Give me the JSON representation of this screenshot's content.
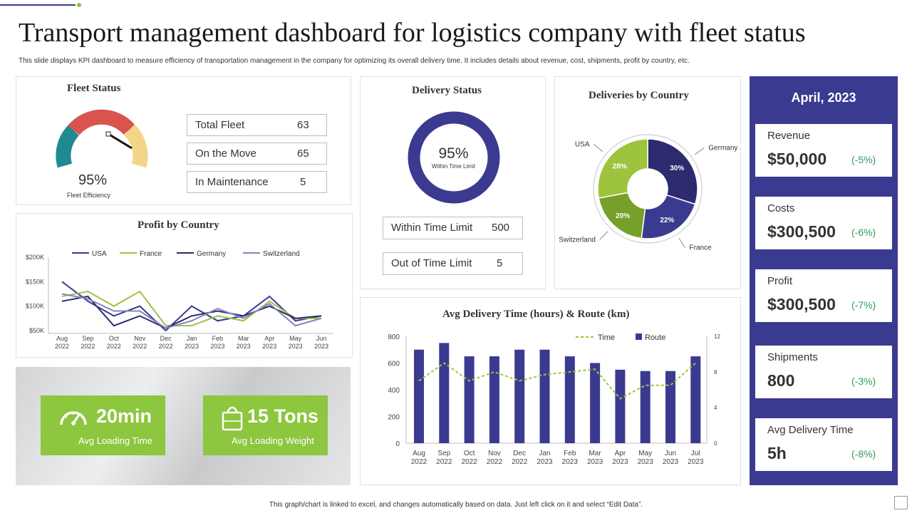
{
  "header": {
    "title": "Transport management dashboard for logistics company with fleet status",
    "subtitle": "This slide displays KPI dashboard to measure efficiency of transportation management in the company for optimizing its overall delivery time. It includes details about revenue, cost, shipments, profit by country, etc."
  },
  "fleet": {
    "title": "Fleet Status",
    "gauge_value": "95%",
    "gauge_label": "Fleet Efficiency",
    "rows": [
      {
        "label": "Total Fleet",
        "value": "63"
      },
      {
        "label": "On the Move",
        "value": "65"
      },
      {
        "label": "In Maintenance",
        "value": "5"
      }
    ],
    "colors": {
      "teal": "#1f8a91",
      "red": "#d9534f",
      "yellow": "#f3d58a"
    }
  },
  "delivery": {
    "title": "Delivery Status",
    "value": "95%",
    "sub": "Within Time Limit",
    "rows": [
      {
        "label": "Within Time Limit",
        "value": "500"
      },
      {
        "label": "Out of Time Limit",
        "value": "5"
      }
    ]
  },
  "sidebar": {
    "title": "April, 2023",
    "kpis": [
      {
        "label": "Revenue",
        "value": "$50,000",
        "change": "(-5%)"
      },
      {
        "label": "Costs",
        "value": "$300,500",
        "change": "(-6%)"
      },
      {
        "label": "Profit",
        "value": "$300,500",
        "change": "(-7%)"
      },
      {
        "label": "Shipments",
        "value": "800",
        "change": "(-3%)"
      },
      {
        "label": "Avg Delivery Time",
        "value": "5h",
        "change": "(-8%)"
      }
    ]
  },
  "tiles": [
    {
      "icon": "speedometer-icon",
      "value": "20min",
      "label": "Avg Loading Time"
    },
    {
      "icon": "shopping-bag-icon",
      "value": "15 Tons",
      "label": "Avg Loading Weight"
    }
  ],
  "footer": "This graph/chart is linked to excel, and changes automatically based on data. Just left click on it and select “Edit Data”.",
  "colors": {
    "navy": "#3b3a91",
    "green": "#8dc63f",
    "dark_navy": "#2d2a6e"
  },
  "chart_data": [
    {
      "type": "line",
      "title": "Profit by Country",
      "categories": [
        [
          "Aug",
          "2022"
        ],
        [
          "Sep",
          "2022"
        ],
        [
          "Oct",
          "2022"
        ],
        [
          "Nov",
          "2022"
        ],
        [
          "Dec",
          "2022"
        ],
        [
          "Jan",
          "2023"
        ],
        [
          "Feb",
          "2023"
        ],
        [
          "Mar",
          "2023"
        ],
        [
          "Apr",
          "2023"
        ],
        [
          "May",
          "2023"
        ],
        [
          "Jun",
          "2023"
        ]
      ],
      "y_ticks": [
        "$200K",
        "$150K",
        "$100K",
        "$50K"
      ],
      "ylim": [
        50,
        200
      ],
      "series": [
        {
          "name": "USA",
          "color": "#3b3a91",
          "values": [
            150,
            110,
            80,
            100,
            50,
            100,
            70,
            80,
            120,
            70,
            80
          ]
        },
        {
          "name": "France",
          "color": "#9dc43c",
          "values": [
            120,
            130,
            100,
            130,
            60,
            60,
            80,
            70,
            110,
            75,
            75
          ]
        },
        {
          "name": "Germany",
          "color": "#2d2a6e",
          "values": [
            110,
            120,
            60,
            80,
            55,
            80,
            90,
            80,
            100,
            75,
            80
          ]
        },
        {
          "name": "Switzerland",
          "color": "#8584b8",
          "values": [
            125,
            115,
            90,
            90,
            55,
            70,
            95,
            75,
            105,
            60,
            75
          ]
        }
      ]
    },
    {
      "type": "pie",
      "title": "Deliveries by Country",
      "slices": [
        {
          "label": "Germany",
          "value": 30,
          "text": "30%",
          "color": "#2d2a6e"
        },
        {
          "label": "France",
          "value": 22,
          "text": "22%",
          "color": "#3b3a91"
        },
        {
          "label": "Switzerland",
          "value": 20,
          "text": "20%",
          "color": "#76a02a"
        },
        {
          "label": "USA",
          "value": 28,
          "text": "28%",
          "color": "#9dc43c"
        }
      ]
    },
    {
      "type": "bar",
      "title": "Avg Delivery Time (hours) & Route (km)",
      "categories": [
        [
          "Aug",
          "2022"
        ],
        [
          "Sep",
          "2022"
        ],
        [
          "Oct",
          "2022"
        ],
        [
          "Nov",
          "2022"
        ],
        [
          "Dec",
          "2022"
        ],
        [
          "Jan",
          "2023"
        ],
        [
          "Feb",
          "2023"
        ],
        [
          "Mar",
          "2023"
        ],
        [
          "Apr",
          "2023"
        ],
        [
          "May",
          "2023"
        ],
        [
          "Jun",
          "2023"
        ],
        [
          "Jul",
          "2023"
        ]
      ],
      "route": {
        "name": "Route",
        "color": "#3b3a91",
        "values": [
          700,
          750,
          650,
          650,
          700,
          700,
          650,
          600,
          550,
          540,
          540,
          650
        ]
      },
      "time": {
        "name": "Time",
        "color": "#9dc43c",
        "values": [
          7,
          9,
          7,
          8,
          7,
          7.7,
          8,
          8.3,
          5,
          6.5,
          6.5,
          9
        ]
      },
      "y_left_ticks": [
        "800",
        "600",
        "400",
        "200",
        "0"
      ],
      "y_right_ticks": [
        "12",
        "8",
        "4",
        "0"
      ],
      "ylim_left": [
        0,
        800
      ],
      "ylim_right": [
        0,
        12
      ]
    }
  ]
}
